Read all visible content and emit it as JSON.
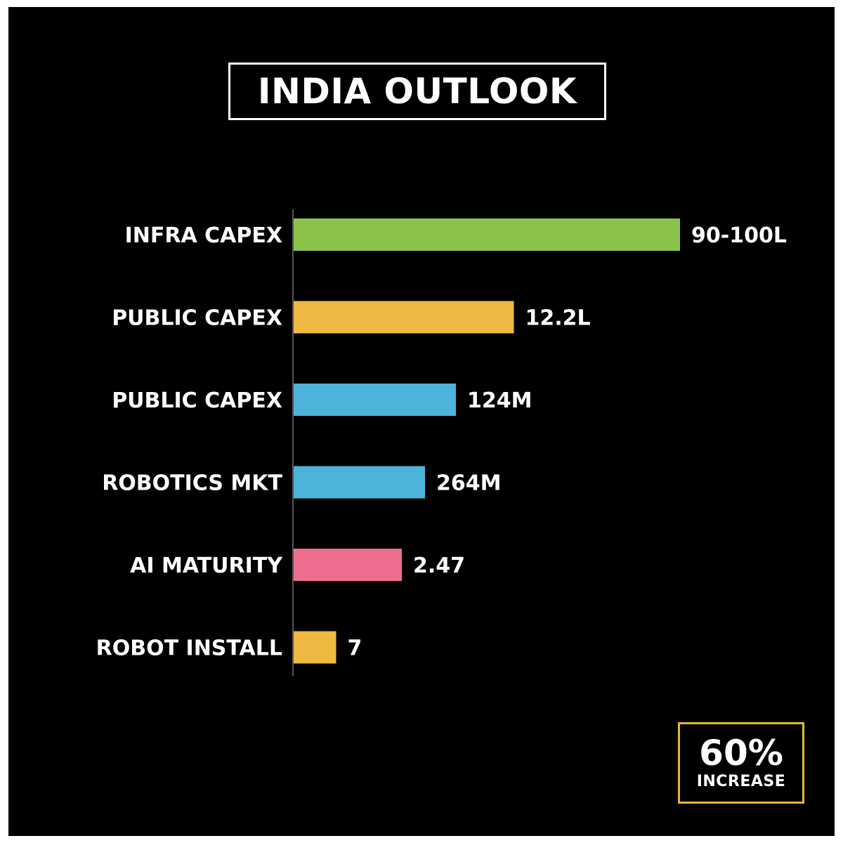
{
  "title": "INDIA OUTLOOK",
  "chart_data": {
    "type": "bar",
    "orientation": "horizontal",
    "categories": [
      "INFRA CAPEX",
      "PUBLIC CAPEX",
      "PUBLIC CAPEX",
      "ROBOTICS MKT",
      "AI MATURITY",
      "ROBOT INSTALL"
    ],
    "value_labels": [
      "90-100L",
      "12.2L",
      "124M",
      "264M",
      "2.47",
      "7"
    ],
    "relative_lengths": [
      100,
      57,
      42,
      34,
      28,
      11
    ],
    "colors": [
      "#8bc34a",
      "#f0b941",
      "#4cb3da",
      "#4cb3da",
      "#ee6e8f",
      "#f0b941"
    ],
    "title": "INDIA OUTLOOK",
    "xlabel": "",
    "ylabel": "",
    "grid": false,
    "legend": "none"
  },
  "badge": {
    "value": "60%",
    "label": "INCREASE"
  },
  "colors": {
    "background": "#000000",
    "text": "#ffffff",
    "badge_border": "#e7b53b"
  }
}
